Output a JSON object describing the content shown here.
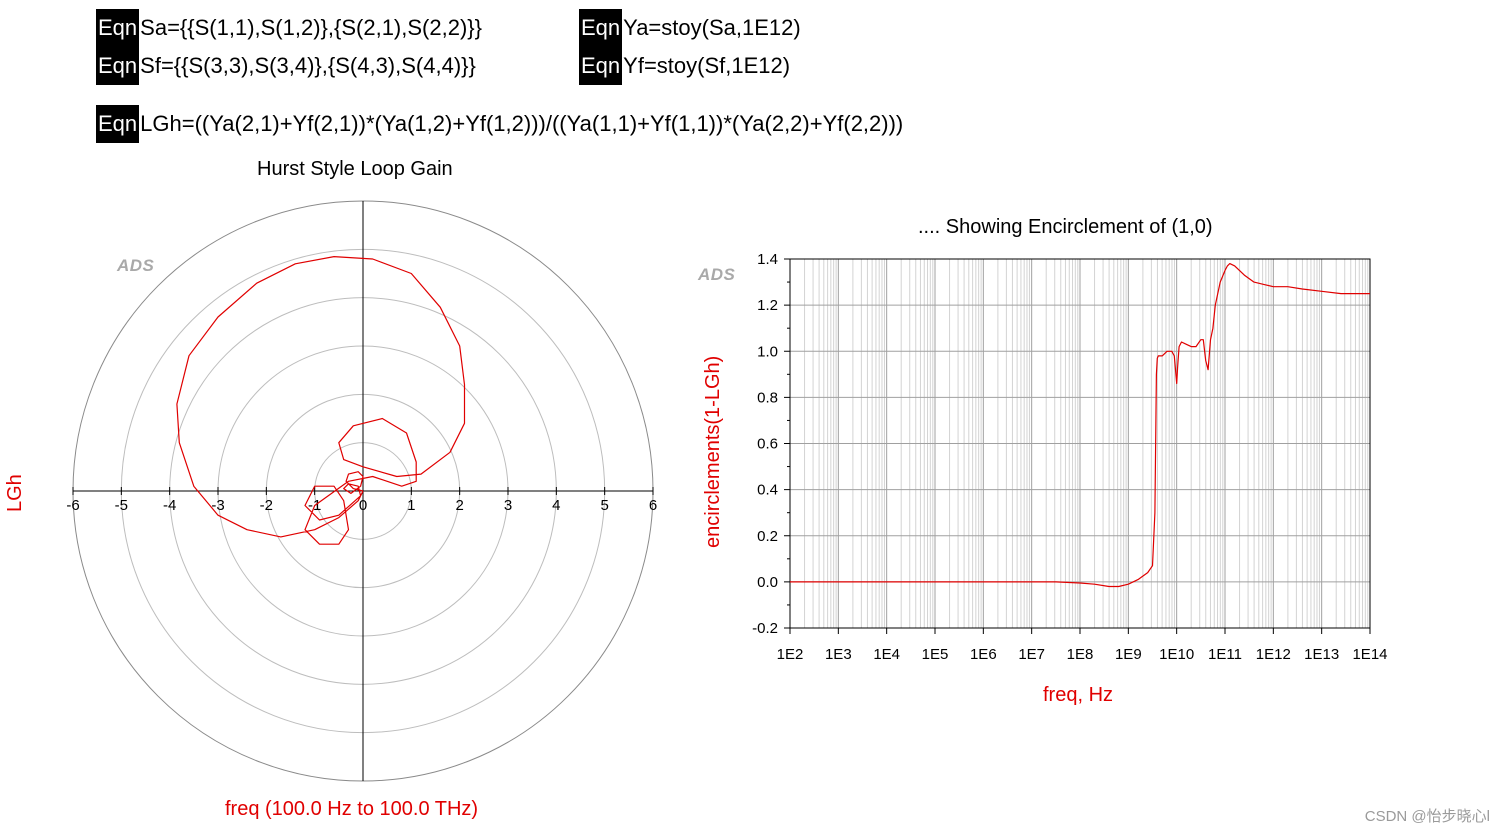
{
  "equations": [
    {
      "tag": "Eqn",
      "text": "Sa={{S(1,1),S(1,2)},{S(2,1),S(2,2)}}"
    },
    {
      "tag": "Eqn",
      "text": "Ya=stoy(Sa,1E12)"
    },
    {
      "tag": "Eqn",
      "text": "Sf={{S(3,3),S(3,4)},{S(4,3),S(4,4)}}"
    },
    {
      "tag": "Eqn",
      "text": "Yf=stoy(Sf,1E12)"
    },
    {
      "tag": "Eqn",
      "text": "LGh=((Ya(2,1)+Yf(2,1))*(Ya(1,2)+Yf(1,2)))/((Ya(1,1)+Yf(1,1))*(Ya(2,2)+Yf(2,2)))"
    }
  ],
  "watermark": "CSDN @怡步晓心l",
  "chart_data": [
    {
      "type": "polar",
      "title": "Hurst Style Loop Gain",
      "brand": "ADS",
      "ylabel": "LGh",
      "sweep_label": "freq (100.0  Hz to 100.0 THz)",
      "xlim": [
        -6,
        6
      ],
      "ring_step": 1,
      "ticks": [
        "-6",
        "-5",
        "-4",
        "-3",
        "-2",
        "-1",
        "0",
        "1",
        "2",
        "3",
        "4",
        "5",
        "6"
      ],
      "series_color": "#e00000",
      "series": [
        {
          "name": "",
          "points": [
            [
              0.0,
              0.0
            ],
            [
              -0.2,
              0.05
            ],
            [
              -0.35,
              0.2
            ],
            [
              -0.3,
              0.35
            ],
            [
              -0.1,
              0.4
            ],
            [
              0.0,
              0.3
            ],
            [
              -0.05,
              0.1
            ],
            [
              -0.25,
              -0.05
            ],
            [
              -0.4,
              0.05
            ],
            [
              -0.3,
              0.15
            ],
            [
              -0.1,
              0.1
            ],
            [
              -0.05,
              -0.1
            ],
            [
              -0.5,
              -0.5
            ],
            [
              -0.9,
              -0.6
            ],
            [
              -1.2,
              -0.3
            ],
            [
              -1.0,
              0.1
            ],
            [
              -0.6,
              0.1
            ],
            [
              -0.4,
              -0.2
            ],
            [
              -0.3,
              -0.8
            ],
            [
              -0.5,
              -1.1
            ],
            [
              -0.9,
              -1.1
            ],
            [
              -1.2,
              -0.8
            ],
            [
              -1.0,
              -0.3
            ],
            [
              -0.3,
              0.2
            ],
            [
              0.2,
              0.3
            ],
            [
              0.8,
              0.1
            ],
            [
              1.1,
              0.2
            ],
            [
              1.1,
              0.6
            ],
            [
              0.9,
              1.2
            ],
            [
              0.4,
              1.5
            ],
            [
              -0.2,
              1.35
            ],
            [
              -0.5,
              1.0
            ],
            [
              -0.4,
              0.65
            ],
            [
              0.0,
              0.5
            ],
            [
              0.7,
              0.3
            ],
            [
              1.2,
              0.35
            ],
            [
              1.8,
              0.8
            ],
            [
              2.1,
              1.4
            ],
            [
              2.1,
              2.2
            ],
            [
              2.0,
              3.0
            ],
            [
              1.6,
              3.8
            ],
            [
              1.0,
              4.5
            ],
            [
              0.2,
              4.8
            ],
            [
              -0.6,
              4.85
            ],
            [
              -1.4,
              4.7
            ],
            [
              -2.2,
              4.3
            ],
            [
              -3.0,
              3.6
            ],
            [
              -3.6,
              2.8
            ],
            [
              -3.85,
              1.8
            ],
            [
              -3.8,
              1.0
            ],
            [
              -3.5,
              0.1
            ],
            [
              -3.0,
              -0.5
            ],
            [
              -2.4,
              -0.8
            ],
            [
              -1.7,
              -0.95
            ],
            [
              -1.0,
              -0.8
            ],
            [
              -0.5,
              -0.55
            ],
            [
              -0.1,
              -0.2
            ],
            [
              0.0,
              0.0
            ]
          ]
        }
      ]
    },
    {
      "type": "line",
      "title": ".... Showing Encirclement of (1,0)",
      "brand": "ADS",
      "xlabel": "freq, Hz",
      "ylabel": "encirclements(1-LGh)",
      "xscale": "log",
      "xlim": [
        100,
        100000000000000
      ],
      "ylim": [
        -0.2,
        1.4
      ],
      "xticks": [
        "1E2",
        "1E3",
        "1E4",
        "1E5",
        "1E6",
        "1E7",
        "1E8",
        "1E9",
        "1E10",
        "1E11",
        "1E12",
        "1E13",
        "1E14"
      ],
      "yticks": [
        "-0.2",
        "0.0",
        "0.2",
        "0.4",
        "0.6",
        "0.8",
        "1.0",
        "1.2",
        "1.4"
      ],
      "grid": true,
      "series_color": "#e00000",
      "series": [
        {
          "name": "",
          "x_exp": [
            2,
            3,
            4,
            5,
            6,
            7,
            7.5,
            8,
            8.3,
            8.6,
            8.8,
            9.0,
            9.2,
            9.4,
            9.5,
            9.55,
            9.58,
            9.6,
            9.62,
            9.65,
            9.7,
            9.8,
            9.9,
            9.95,
            10.0,
            10.02,
            10.05,
            10.1,
            10.2,
            10.3,
            10.4,
            10.5,
            10.55,
            10.6,
            10.65,
            10.7,
            10.75,
            10.8,
            10.9,
            11.0,
            11.05,
            11.1,
            11.2,
            11.4,
            11.6,
            11.8,
            12.0,
            12.3,
            12.6,
            13.0,
            13.4,
            14.0
          ],
          "y": [
            0.0,
            0.0,
            0.0,
            0.0,
            0.0,
            0.0,
            0.0,
            -0.005,
            -0.01,
            -0.02,
            -0.02,
            -0.01,
            0.01,
            0.04,
            0.07,
            0.3,
            0.9,
            0.97,
            0.98,
            0.98,
            0.98,
            1.0,
            1.0,
            0.98,
            0.86,
            0.93,
            1.02,
            1.04,
            1.03,
            1.02,
            1.02,
            1.05,
            1.05,
            0.96,
            0.92,
            1.05,
            1.1,
            1.2,
            1.3,
            1.35,
            1.37,
            1.38,
            1.37,
            1.33,
            1.3,
            1.29,
            1.28,
            1.28,
            1.27,
            1.26,
            1.25,
            1.25
          ]
        }
      ]
    }
  ]
}
